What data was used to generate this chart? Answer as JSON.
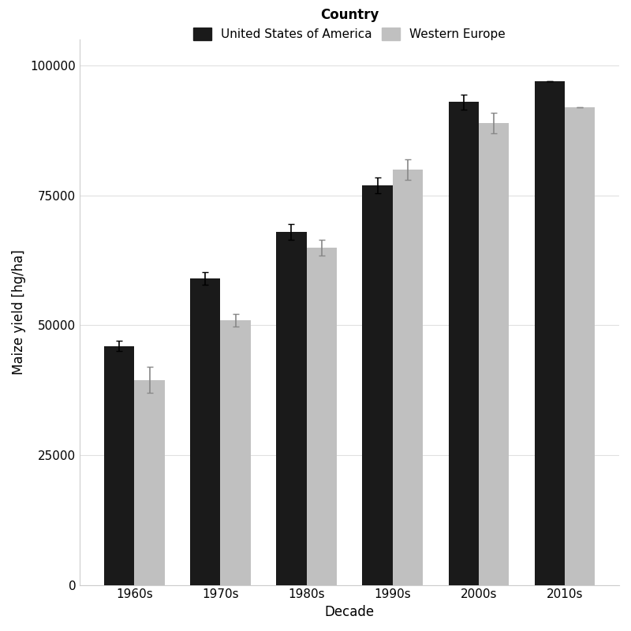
{
  "decades": [
    "1960s",
    "1970s",
    "1980s",
    "1990s",
    "2000s",
    "2010s"
  ],
  "usa_means": [
    46000,
    59000,
    68000,
    77000,
    93000,
    97000
  ],
  "usa_se": [
    1000,
    1200,
    1500,
    1500,
    1500,
    0
  ],
  "we_means": [
    39500,
    51000,
    65000,
    80000,
    89000,
    92000
  ],
  "we_se": [
    2500,
    1200,
    1500,
    2000,
    2000,
    0
  ],
  "usa_color": "#1a1a1a",
  "we_color": "#c0c0c0",
  "title": "Country   United States of America   Western Europe",
  "xlabel": "Decade",
  "ylabel": "Maize yield [hg/ha]",
  "ylim": [
    0,
    105000
  ],
  "yticks": [
    0,
    25000,
    50000,
    75000,
    100000
  ],
  "bar_width": 0.35,
  "figsize": [
    8,
    8
  ],
  "dpi": 100
}
